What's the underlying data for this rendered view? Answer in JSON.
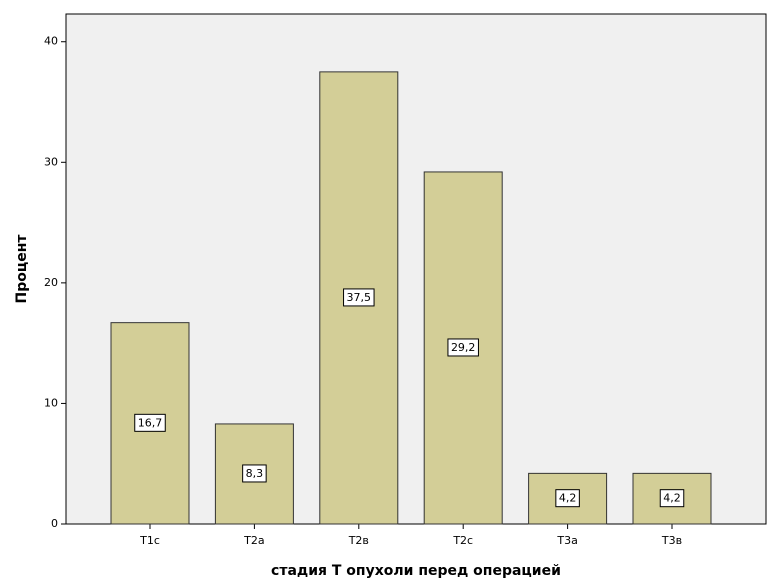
{
  "chart_data": {
    "type": "bar",
    "x_label": "стадия Т опухоли перед операцией",
    "y_label": "Процент",
    "categories": [
      "T1c",
      "T2a",
      "T2в",
      "T2c",
      "T3a",
      "T3в"
    ],
    "values": [
      16.7,
      8.3,
      37.5,
      29.2,
      4.2,
      4.2
    ],
    "value_labels": [
      "16,7",
      "8,3",
      "37,5",
      "29,2",
      "4,2",
      "4,2"
    ],
    "color": "#d3ce97",
    "ylim": [
      0,
      42.3
    ],
    "yticks": [
      0,
      10,
      20,
      30,
      40
    ],
    "grid": false
  }
}
